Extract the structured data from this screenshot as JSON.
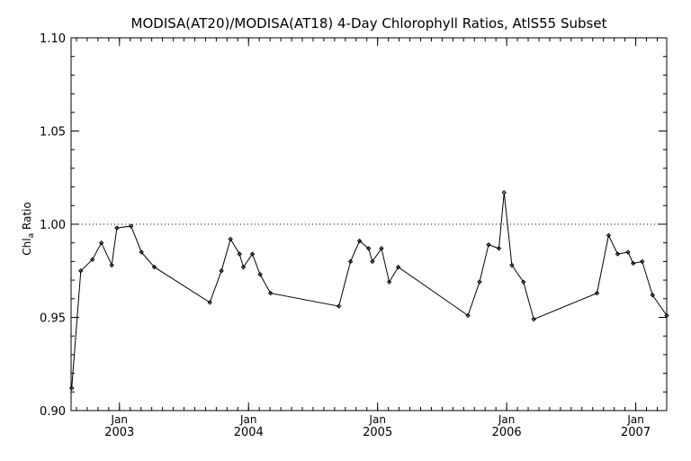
{
  "chart_data": {
    "type": "line",
    "title": "MODISA(AT20)/MODISA(AT18) 4-Day Chlorophyll Ratios, AtlS55 Subset",
    "ylabel": "Chl",
    "ylabel_sub": "a",
    "ylabel_suffix": " Ratio",
    "xlabel": "",
    "ylim": [
      0.9,
      1.1
    ],
    "yticks": [
      "0.90",
      "0.95",
      "1.00",
      "1.05",
      "1.10"
    ],
    "xlim": [
      2002.625,
      2007.24
    ],
    "xticks": [
      {
        "month": "Jan",
        "year": "2003",
        "x": 2003.0
      },
      {
        "month": "Jan",
        "year": "2004",
        "x": 2004.0
      },
      {
        "month": "Jan",
        "year": "2005",
        "x": 2005.0
      },
      {
        "month": "Jan",
        "year": "2006",
        "x": 2006.0
      },
      {
        "month": "Jan",
        "year": "2007",
        "x": 2007.0
      }
    ],
    "reference_line": 1.0,
    "series": [
      {
        "x": [
          2002.63,
          2002.7,
          2002.79,
          2002.86,
          2002.94,
          2002.98,
          2003.09,
          2003.17,
          2003.27,
          2003.7,
          2003.79,
          2003.86,
          2003.93,
          2003.96,
          2004.03,
          2004.09,
          2004.17,
          2004.7,
          2004.79,
          2004.86,
          2004.93,
          2004.96,
          2005.03,
          2005.09,
          2005.16,
          2005.7,
          2005.79,
          2005.86,
          2005.94,
          2005.98,
          2006.04,
          2006.13,
          2006.21,
          2006.7,
          2006.79,
          2006.86,
          2006.94,
          2006.98,
          2007.05,
          2007.13,
          2007.24
        ],
        "y": [
          0.912,
          0.975,
          0.981,
          0.99,
          0.978,
          0.998,
          0.999,
          0.985,
          0.977,
          0.958,
          0.975,
          0.992,
          0.984,
          0.977,
          0.984,
          0.973,
          0.963,
          0.956,
          0.98,
          0.991,
          0.987,
          0.98,
          0.987,
          0.969,
          0.977,
          0.951,
          0.969,
          0.989,
          0.987,
          1.017,
          0.978,
          0.969,
          0.949,
          0.963,
          0.994,
          0.984,
          0.985,
          0.979,
          0.98,
          0.962,
          0.951
        ]
      }
    ],
    "grid": false,
    "colors": {
      "line": "#000000",
      "background": "#ffffff",
      "reference": "#000000"
    }
  }
}
